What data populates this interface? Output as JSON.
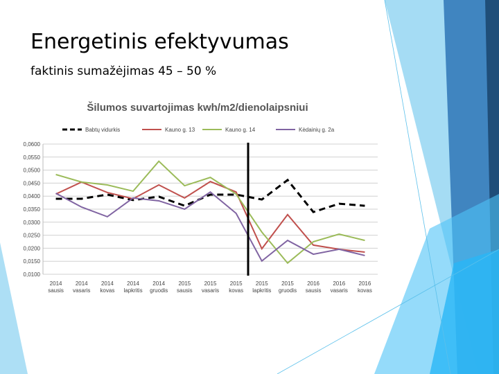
{
  "slide": {
    "title": "Energetinis efektyvumas",
    "subtitle": "faktinis sumažėjimas 45 – 50 %"
  },
  "chart_data": {
    "type": "line",
    "title": "Šilumos suvartojimas kwh/m2/dienolaipsniui",
    "categories": [
      [
        "2014",
        "sausis"
      ],
      [
        "2014",
        "vasaris"
      ],
      [
        "2014",
        "kovas"
      ],
      [
        "2014",
        "lapkritis"
      ],
      [
        "2014",
        "gruodis"
      ],
      [
        "2015",
        "sausis"
      ],
      [
        "2015",
        "vasaris"
      ],
      [
        "2015",
        "kovas"
      ],
      [
        "2015",
        "lapkritis"
      ],
      [
        "2015",
        "gruodis"
      ],
      [
        "2016",
        "sausis"
      ],
      [
        "2016",
        "vasaris"
      ],
      [
        "2016",
        "kovas"
      ]
    ],
    "series": [
      {
        "name": "Babtų vidurkis",
        "color": "#000000",
        "line_style": "dashed",
        "values": [
          0.039,
          0.039,
          0.0406,
          0.0385,
          0.0398,
          0.0363,
          0.0406,
          0.0406,
          0.0387,
          0.0462,
          0.0339,
          0.0371,
          0.0363
        ]
      },
      {
        "name": "Kauno g. 13",
        "color": "#c0504d",
        "line_style": "solid",
        "values": [
          0.0408,
          0.0454,
          0.0414,
          0.039,
          0.0443,
          0.0393,
          0.0456,
          0.0416,
          0.0198,
          0.0329,
          0.0212,
          0.0196,
          0.0185
        ]
      },
      {
        "name": "Kauno g. 14",
        "color": "#9bbb59",
        "line_style": "solid",
        "values": [
          0.0483,
          0.0454,
          0.0443,
          0.0419,
          0.0534,
          0.044,
          0.0472,
          0.0408,
          0.0262,
          0.0143,
          0.0225,
          0.0254,
          0.023
        ]
      },
      {
        "name": "Kėdainių g. 2a",
        "color": "#8064a2",
        "line_style": "solid",
        "values": [
          0.0411,
          0.0358,
          0.0321,
          0.0393,
          0.0382,
          0.035,
          0.0416,
          0.0334,
          0.0151,
          0.023,
          0.0177,
          0.0196,
          0.0172
        ]
      }
    ],
    "ylim": [
      0.01,
      0.06
    ],
    "yticks": [
      {
        "value": 0.01,
        "label": "0,0100"
      },
      {
        "value": 0.015,
        "label": "0,0150"
      },
      {
        "value": 0.02,
        "label": "0,0200"
      },
      {
        "value": 0.025,
        "label": "0,0250"
      },
      {
        "value": 0.03,
        "label": "0,0300"
      },
      {
        "value": 0.035,
        "label": "0,0350"
      },
      {
        "value": 0.04,
        "label": "0,0400"
      },
      {
        "value": 0.045,
        "label": "0,0450"
      },
      {
        "value": 0.05,
        "label": "0,0500"
      },
      {
        "value": 0.055,
        "label": "0,0550"
      },
      {
        "value": 0.06,
        "label": "0,0600"
      }
    ],
    "grid": true,
    "legend": "top"
  }
}
